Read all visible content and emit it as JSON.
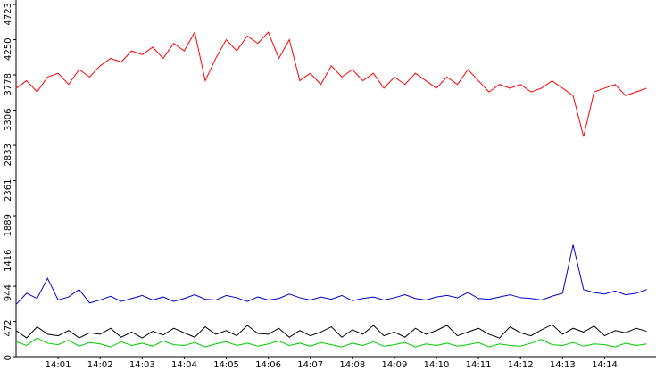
{
  "chart_data": {
    "type": "line",
    "categories": [
      null,
      null,
      null,
      null,
      "14:01",
      null,
      null,
      null,
      "14:02",
      null,
      null,
      null,
      "14:03",
      null,
      null,
      null,
      "14:04",
      null,
      null,
      null,
      "14:05",
      null,
      null,
      null,
      "14:06",
      null,
      null,
      null,
      "14:07",
      null,
      null,
      null,
      "14:08",
      null,
      null,
      null,
      "14:09",
      null,
      null,
      null,
      "14:10",
      null,
      null,
      null,
      "14:11",
      null,
      null,
      null,
      "14:12",
      null,
      null,
      null,
      "14:13",
      null,
      null,
      null,
      "14:14",
      null,
      null,
      null,
      null
    ],
    "series": [
      {
        "color": "#ff0000",
        "values": [
          3600,
          3700,
          3550,
          3750,
          3800,
          3650,
          3850,
          3750,
          3900,
          4000,
          3950,
          4100,
          4050,
          4150,
          4000,
          4200,
          4100,
          4350,
          3700,
          4000,
          4250,
          4100,
          4300,
          4200,
          4350,
          4000,
          4250,
          3700,
          3800,
          3650,
          3900,
          3750,
          3850,
          3700,
          3800,
          3600,
          3750,
          3650,
          3800,
          3700,
          3600,
          3750,
          3650,
          3850,
          3700,
          3550,
          3650,
          3600,
          3650,
          3550,
          3600,
          3700,
          3600,
          3500,
          2950,
          3550,
          3600,
          3650,
          3500,
          3550,
          3600
        ]
      },
      {
        "color": "#0000cc",
        "values": [
          700,
          850,
          780,
          1050,
          760,
          800,
          900,
          720,
          760,
          810,
          740,
          780,
          820,
          760,
          800,
          740,
          780,
          830,
          770,
          760,
          820,
          790,
          740,
          800,
          760,
          780,
          840,
          790,
          760,
          800,
          770,
          820,
          750,
          780,
          800,
          760,
          790,
          830,
          780,
          760,
          800,
          820,
          790,
          860,
          780,
          770,
          800,
          830,
          790,
          780,
          760,
          810,
          850,
          1500,
          900,
          860,
          840,
          880,
          830,
          850,
          900
        ]
      },
      {
        "color": "#000000",
        "values": [
          350,
          250,
          400,
          300,
          280,
          350,
          250,
          320,
          300,
          380,
          260,
          330,
          250,
          340,
          290,
          380,
          320,
          260,
          400,
          300,
          350,
          280,
          420,
          310,
          300,
          380,
          260,
          350,
          280,
          330,
          400,
          260,
          360,
          300,
          420,
          280,
          330,
          260,
          380,
          300,
          350,
          420,
          280,
          330,
          380,
          300,
          250,
          400,
          320,
          280,
          360,
          430,
          300,
          380,
          330,
          410,
          280,
          350,
          320,
          380,
          340
        ]
      },
      {
        "color": "#00cc00",
        "values": [
          200,
          150,
          250,
          180,
          160,
          220,
          140,
          190,
          170,
          130,
          200,
          150,
          180,
          140,
          210,
          160,
          150,
          190,
          130,
          170,
          200,
          150,
          180,
          140,
          170,
          210,
          150,
          180,
          140,
          190,
          160,
          130,
          180,
          150,
          200,
          140,
          160,
          190,
          130,
          170,
          150,
          180,
          140,
          160,
          190,
          130,
          170,
          150,
          140,
          180,
          230,
          160,
          150,
          190,
          140,
          170,
          160,
          130,
          180,
          150,
          170
        ]
      }
    ],
    "ylim": [
      0,
      4723
    ],
    "yticks": [
      0,
      472,
      944,
      1416,
      1889,
      2361,
      2833,
      3306,
      3778,
      4250,
      4723
    ]
  }
}
